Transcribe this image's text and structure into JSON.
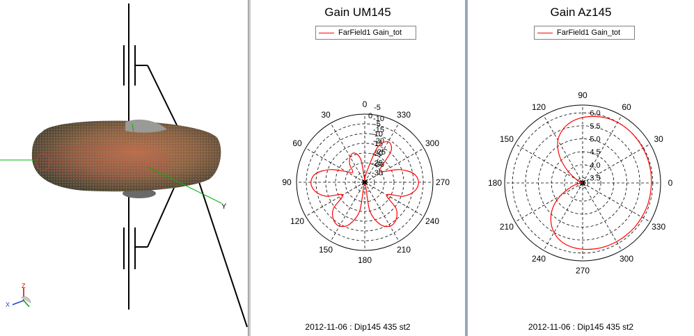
{
  "view3d": {
    "axis_y_label": "Y",
    "triad_z": "Z",
    "triad_x": "X"
  },
  "colors": {
    "trace": "#ff0000",
    "grid": "#000000",
    "axis_green": "#00b400"
  },
  "chart_data": [
    {
      "type": "polar",
      "title": "Gain UM145",
      "legend": "FarField1 Gain_tot",
      "footer": "2012-11-06 : Dip145 435 st2",
      "angle_labels": [
        "0",
        "30",
        "60",
        "90",
        "120",
        "150",
        "180",
        "210",
        "240",
        "270",
        "300",
        "330"
      ],
      "angle_direction": "counterclockwise, 0 at top",
      "radial_labels": [
        "0",
        "-5",
        "-10",
        "-15",
        "-20",
        "-25",
        "-30",
        "-5",
        "-10",
        "-15",
        "-20",
        "-25",
        "-30"
      ],
      "rlim": [
        -35,
        0
      ],
      "grid": true,
      "series": [
        {
          "name": "FarField1 Gain_tot",
          "theta_deg": [
            0,
            10,
            20,
            30,
            40,
            50,
            60,
            70,
            80,
            90,
            100,
            110,
            120,
            130,
            140,
            150,
            160,
            170,
            180,
            190,
            200,
            210,
            220,
            230,
            240,
            250,
            260,
            270,
            280,
            290,
            300,
            310,
            320,
            330,
            340,
            350,
            360
          ],
          "gain_db": [
            -34,
            -23,
            -19,
            -20,
            -23,
            -27,
            -24,
            -16,
            -9.5,
            -7.4,
            -9,
            -14,
            -22,
            -14,
            -10,
            -9,
            -12,
            -20,
            -34,
            -20,
            -12,
            -9,
            -10,
            -14,
            -22,
            -14,
            -9,
            -7.4,
            -9.5,
            -16,
            -24,
            -25,
            -14,
            -11,
            -16,
            -30,
            -34
          ]
        }
      ]
    },
    {
      "type": "polar",
      "title": "Gain Az145",
      "legend": "FarField1 Gain_tot",
      "footer": "2012-11-06 : Dip145 435 st2",
      "angle_labels": [
        "0",
        "30",
        "60",
        "90",
        "120",
        "150",
        "180",
        "210",
        "240",
        "270",
        "300",
        "330"
      ],
      "angle_direction": "counterclockwise, 0 at right",
      "radial_labels": [
        "3.5",
        "4.0",
        "4.5",
        "5.0",
        "5.5",
        "6.0"
      ],
      "rlim": [
        3.3,
        6.3
      ],
      "grid": true,
      "series": [
        {
          "name": "FarField1 Gain_tot",
          "theta_deg": [
            0,
            10,
            20,
            30,
            40,
            50,
            60,
            70,
            80,
            90,
            100,
            110,
            120,
            130,
            140,
            150,
            160,
            170,
            180,
            190,
            200,
            210,
            220,
            230,
            240,
            250,
            260,
            270,
            280,
            290,
            300,
            310,
            320,
            330,
            340,
            350,
            360
          ],
          "gain": [
            5.95,
            5.96,
            5.97,
            5.98,
            5.99,
            6.0,
            5.99,
            5.96,
            5.9,
            5.82,
            5.7,
            5.5,
            5.2,
            4.7,
            4.1,
            3.6,
            3.4,
            3.3,
            3.35,
            3.5,
            3.8,
            4.3,
            4.8,
            5.2,
            5.5,
            5.7,
            5.8,
            5.85,
            5.88,
            5.9,
            5.91,
            5.92,
            5.93,
            5.93,
            5.94,
            5.94,
            5.95
          ]
        }
      ]
    }
  ]
}
